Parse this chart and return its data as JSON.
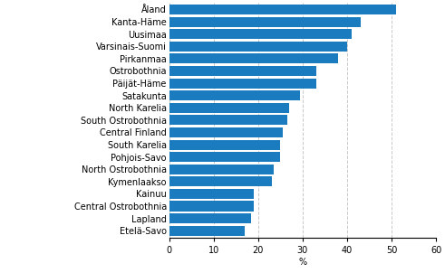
{
  "categories": [
    "Åland",
    "Kanta-Häme",
    "Uusimaa",
    "Varsinais-Suomi",
    "Pirkanmaa",
    "Ostrobothnia",
    "Päijät-Häme",
    "Satakunta",
    "North Karelia",
    "South Ostrobothnia",
    "Central Finland",
    "South Karelia",
    "Pohjois-Savo",
    "North Ostrobothnia",
    "Kymenlaakso",
    "Kainuu",
    "Central Ostrobothnia",
    "Lapland",
    "Etelä-Savo"
  ],
  "values": [
    51,
    43,
    41,
    40,
    38,
    33,
    33,
    29.5,
    27,
    26.5,
    25.5,
    25,
    25,
    23.5,
    23,
    19,
    19,
    18.5,
    17
  ],
  "bar_color": "#1b7bbf",
  "xlabel": "%",
  "xlim": [
    0,
    60
  ],
  "xticks": [
    0,
    10,
    20,
    30,
    40,
    50,
    60
  ],
  "grid_color": "#c8c8c8",
  "bg_color": "#ffffff",
  "bar_height": 0.82,
  "figsize": [
    4.91,
    3.02
  ],
  "dpi": 100,
  "tick_fontsize": 7,
  "label_fontsize": 7
}
